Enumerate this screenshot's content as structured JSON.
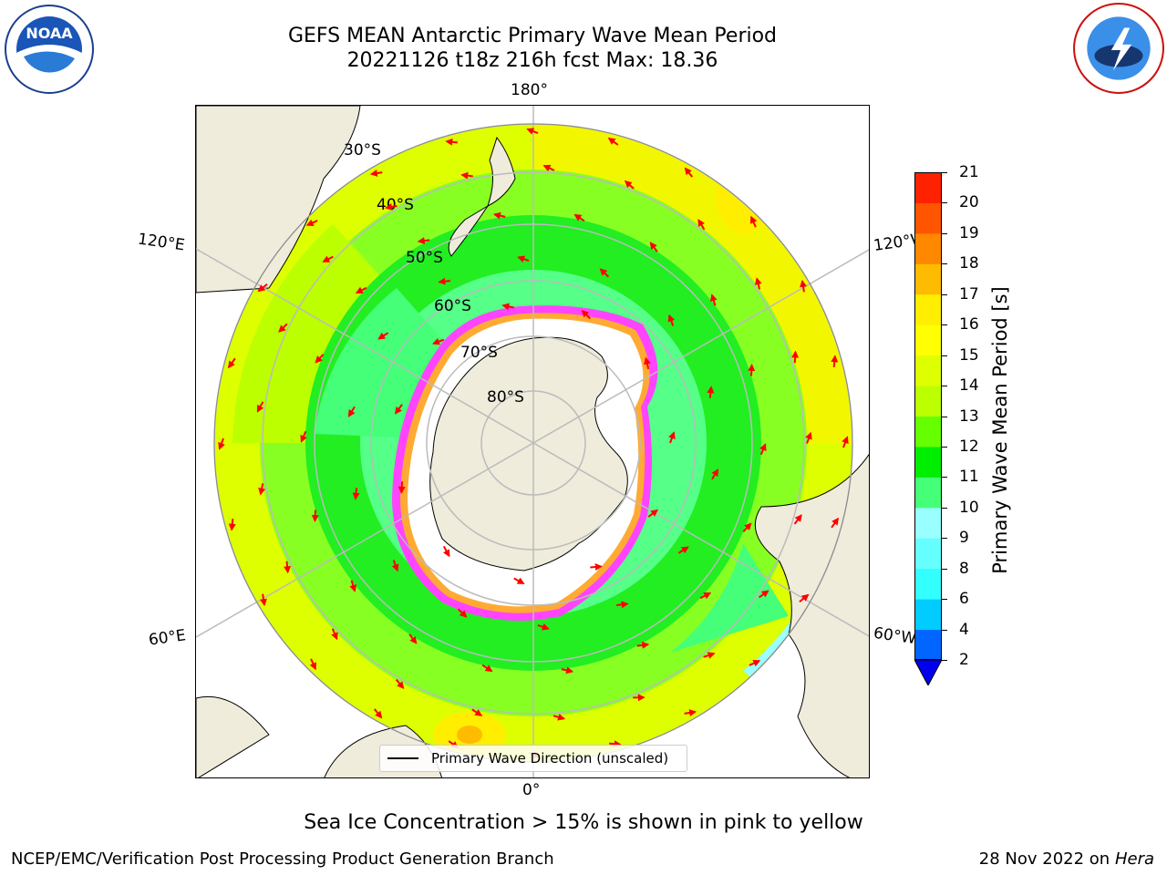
{
  "header": {
    "title_line1": "GEFS MEAN Antarctic Primary Wave Mean Period",
    "title_line2": "20221126 t18z 216h fcst   Max: 18.36"
  },
  "logos": {
    "left": "noaa-logo",
    "right": "nws-logo"
  },
  "map": {
    "projection": "south-polar-stereographic",
    "lon_labels": {
      "top": "180°",
      "bottom": "0°",
      "upper_left": "120°E",
      "upper_right": "120°W",
      "lower_left": "60°E",
      "lower_right": "60°W"
    },
    "lat_labels": [
      "30°S",
      "40°S",
      "50°S",
      "60°S",
      "70°S",
      "80°S"
    ],
    "legend_label": "Primary Wave Direction (unscaled)",
    "vector_color": "#ff0000",
    "land_color": "#efecdc",
    "ice_colors": [
      "#ff44ff",
      "#ffaa33",
      "#ffff00"
    ]
  },
  "colorbar": {
    "label": "Primary Wave Mean Period [s]",
    "ticks": [
      "2",
      "4",
      "6",
      "8",
      "9",
      "10",
      "11",
      "12",
      "13",
      "14",
      "15",
      "16",
      "17",
      "18",
      "19",
      "20",
      "21"
    ],
    "colors": [
      "#0066ff",
      "#00ccff",
      "#33ffff",
      "#66ffff",
      "#99ffff",
      "#44ff77",
      "#00ee00",
      "#66ff00",
      "#bbff00",
      "#ddff00",
      "#ffff00",
      "#ffee00",
      "#ffbb00",
      "#ff8800",
      "#ff5500",
      "#ff2200"
    ],
    "under_color": "#0000ee"
  },
  "subtitle": "Sea Ice Concentration > 15% is shown in pink to yellow",
  "footer": {
    "left": "NCEP/EMC/Verification Post Processing Product Generation Branch",
    "date": "28 Nov 2022 on",
    "machine": "Hera"
  }
}
